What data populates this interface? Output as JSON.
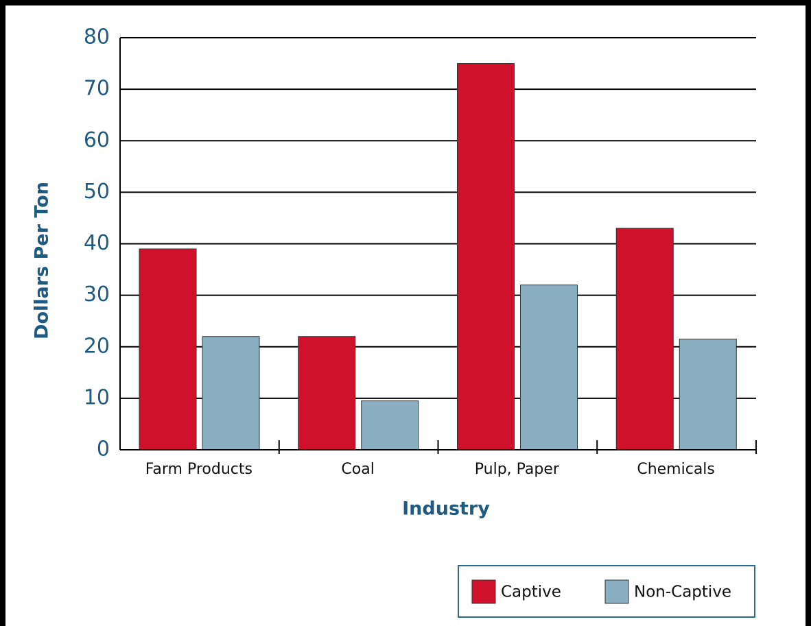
{
  "chart_data": {
    "type": "bar",
    "x_label": "Industry",
    "y_label": "Dollars Per Ton",
    "categories": [
      "Farm Products",
      "Coal",
      "Pulp, Paper",
      "Chemicals"
    ],
    "series": [
      {
        "name": "Captive",
        "color": "#d0112b",
        "values": [
          39,
          22,
          75,
          43
        ]
      },
      {
        "name": "Non-Captive",
        "color": "#8aafc2",
        "values": [
          22,
          9.5,
          32,
          21.5
        ]
      }
    ],
    "ylim": [
      0,
      80
    ],
    "yticks": [
      0,
      10,
      20,
      30,
      40,
      50,
      60,
      70,
      80
    ],
    "grid": true,
    "legend": "bottom-right"
  }
}
